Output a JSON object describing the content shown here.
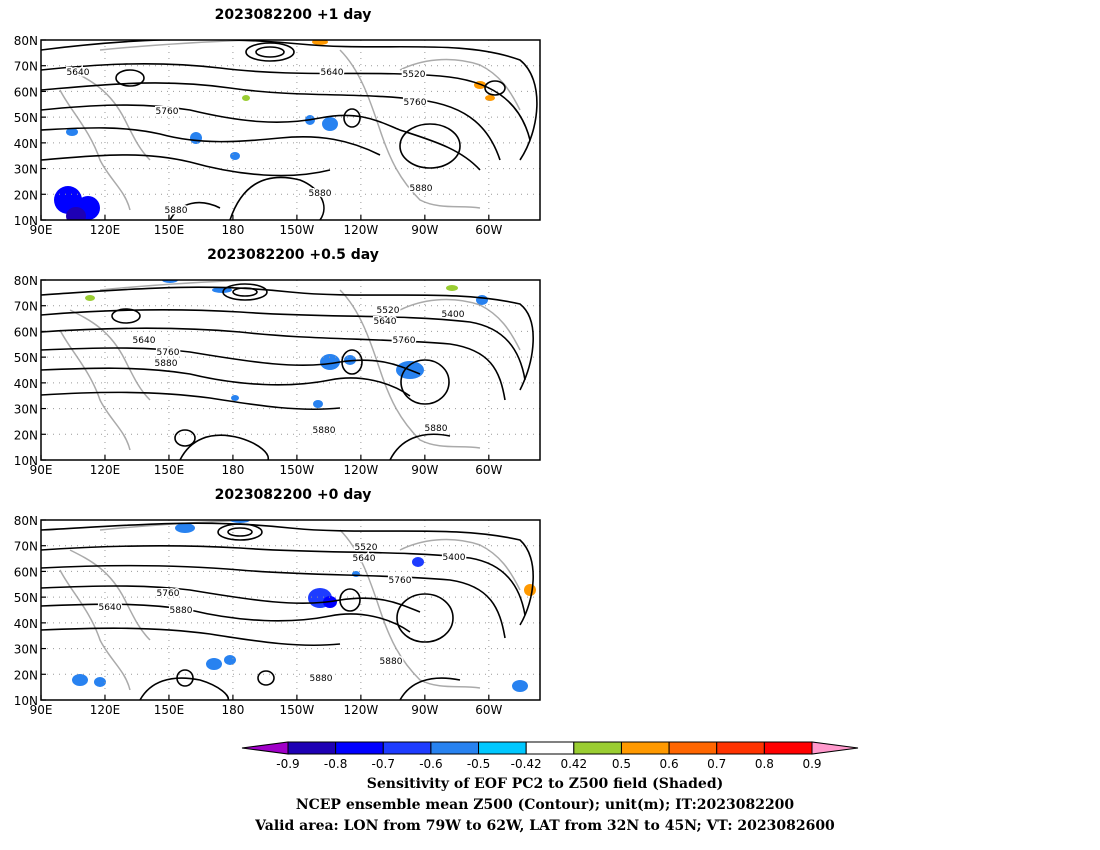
{
  "panels": [
    {
      "title": "2023082200  +1 day",
      "contour_labels": [
        "5640",
        "5640",
        "5520",
        "5760",
        "5760",
        "5880",
        "5880",
        "5880"
      ]
    },
    {
      "title": "2023082200  +0.5 day",
      "contour_labels": [
        "5520",
        "5640",
        "5400",
        "5640",
        "5760",
        "5760",
        "5880",
        "5880",
        "5880"
      ]
    },
    {
      "title": "2023082200  +0 day",
      "contour_labels": [
        "5520",
        "5640",
        "5400",
        "5760",
        "5640",
        "5760",
        "5880",
        "5880",
        "5880"
      ]
    }
  ],
  "axes": {
    "lat_labels": [
      "80N",
      "70N",
      "60N",
      "50N",
      "40N",
      "30N",
      "20N",
      "10N"
    ],
    "lon_labels": [
      "90E",
      "120E",
      "150E",
      "180",
      "150W",
      "120W",
      "90W",
      "60W"
    ]
  },
  "colorbar": {
    "tick_labels": [
      "-0.9",
      "-0.8",
      "-0.7",
      "-0.6",
      "-0.5",
      "-0.42",
      "0.42",
      "0.5",
      "0.6",
      "0.7",
      "0.8",
      "0.9"
    ],
    "colors": [
      "#a000c8",
      "#1e00b4",
      "#0000ff",
      "#1e3cff",
      "#2882f0",
      "#00c8ff",
      "#ffffff",
      "#9acd32",
      "#ff9900",
      "#ff6600",
      "#ff3300",
      "#ff0000",
      "#ff99cc"
    ]
  },
  "captions": [
    "Sensitivity of EOF PC2 to Z500 field (Shaded)",
    "NCEP ensemble mean Z500 (Contour); unit(m); IT:2023082200",
    "Valid area: LON from 79W to 62W, LAT from 32N to 45N; VT: 2023082600"
  ]
}
